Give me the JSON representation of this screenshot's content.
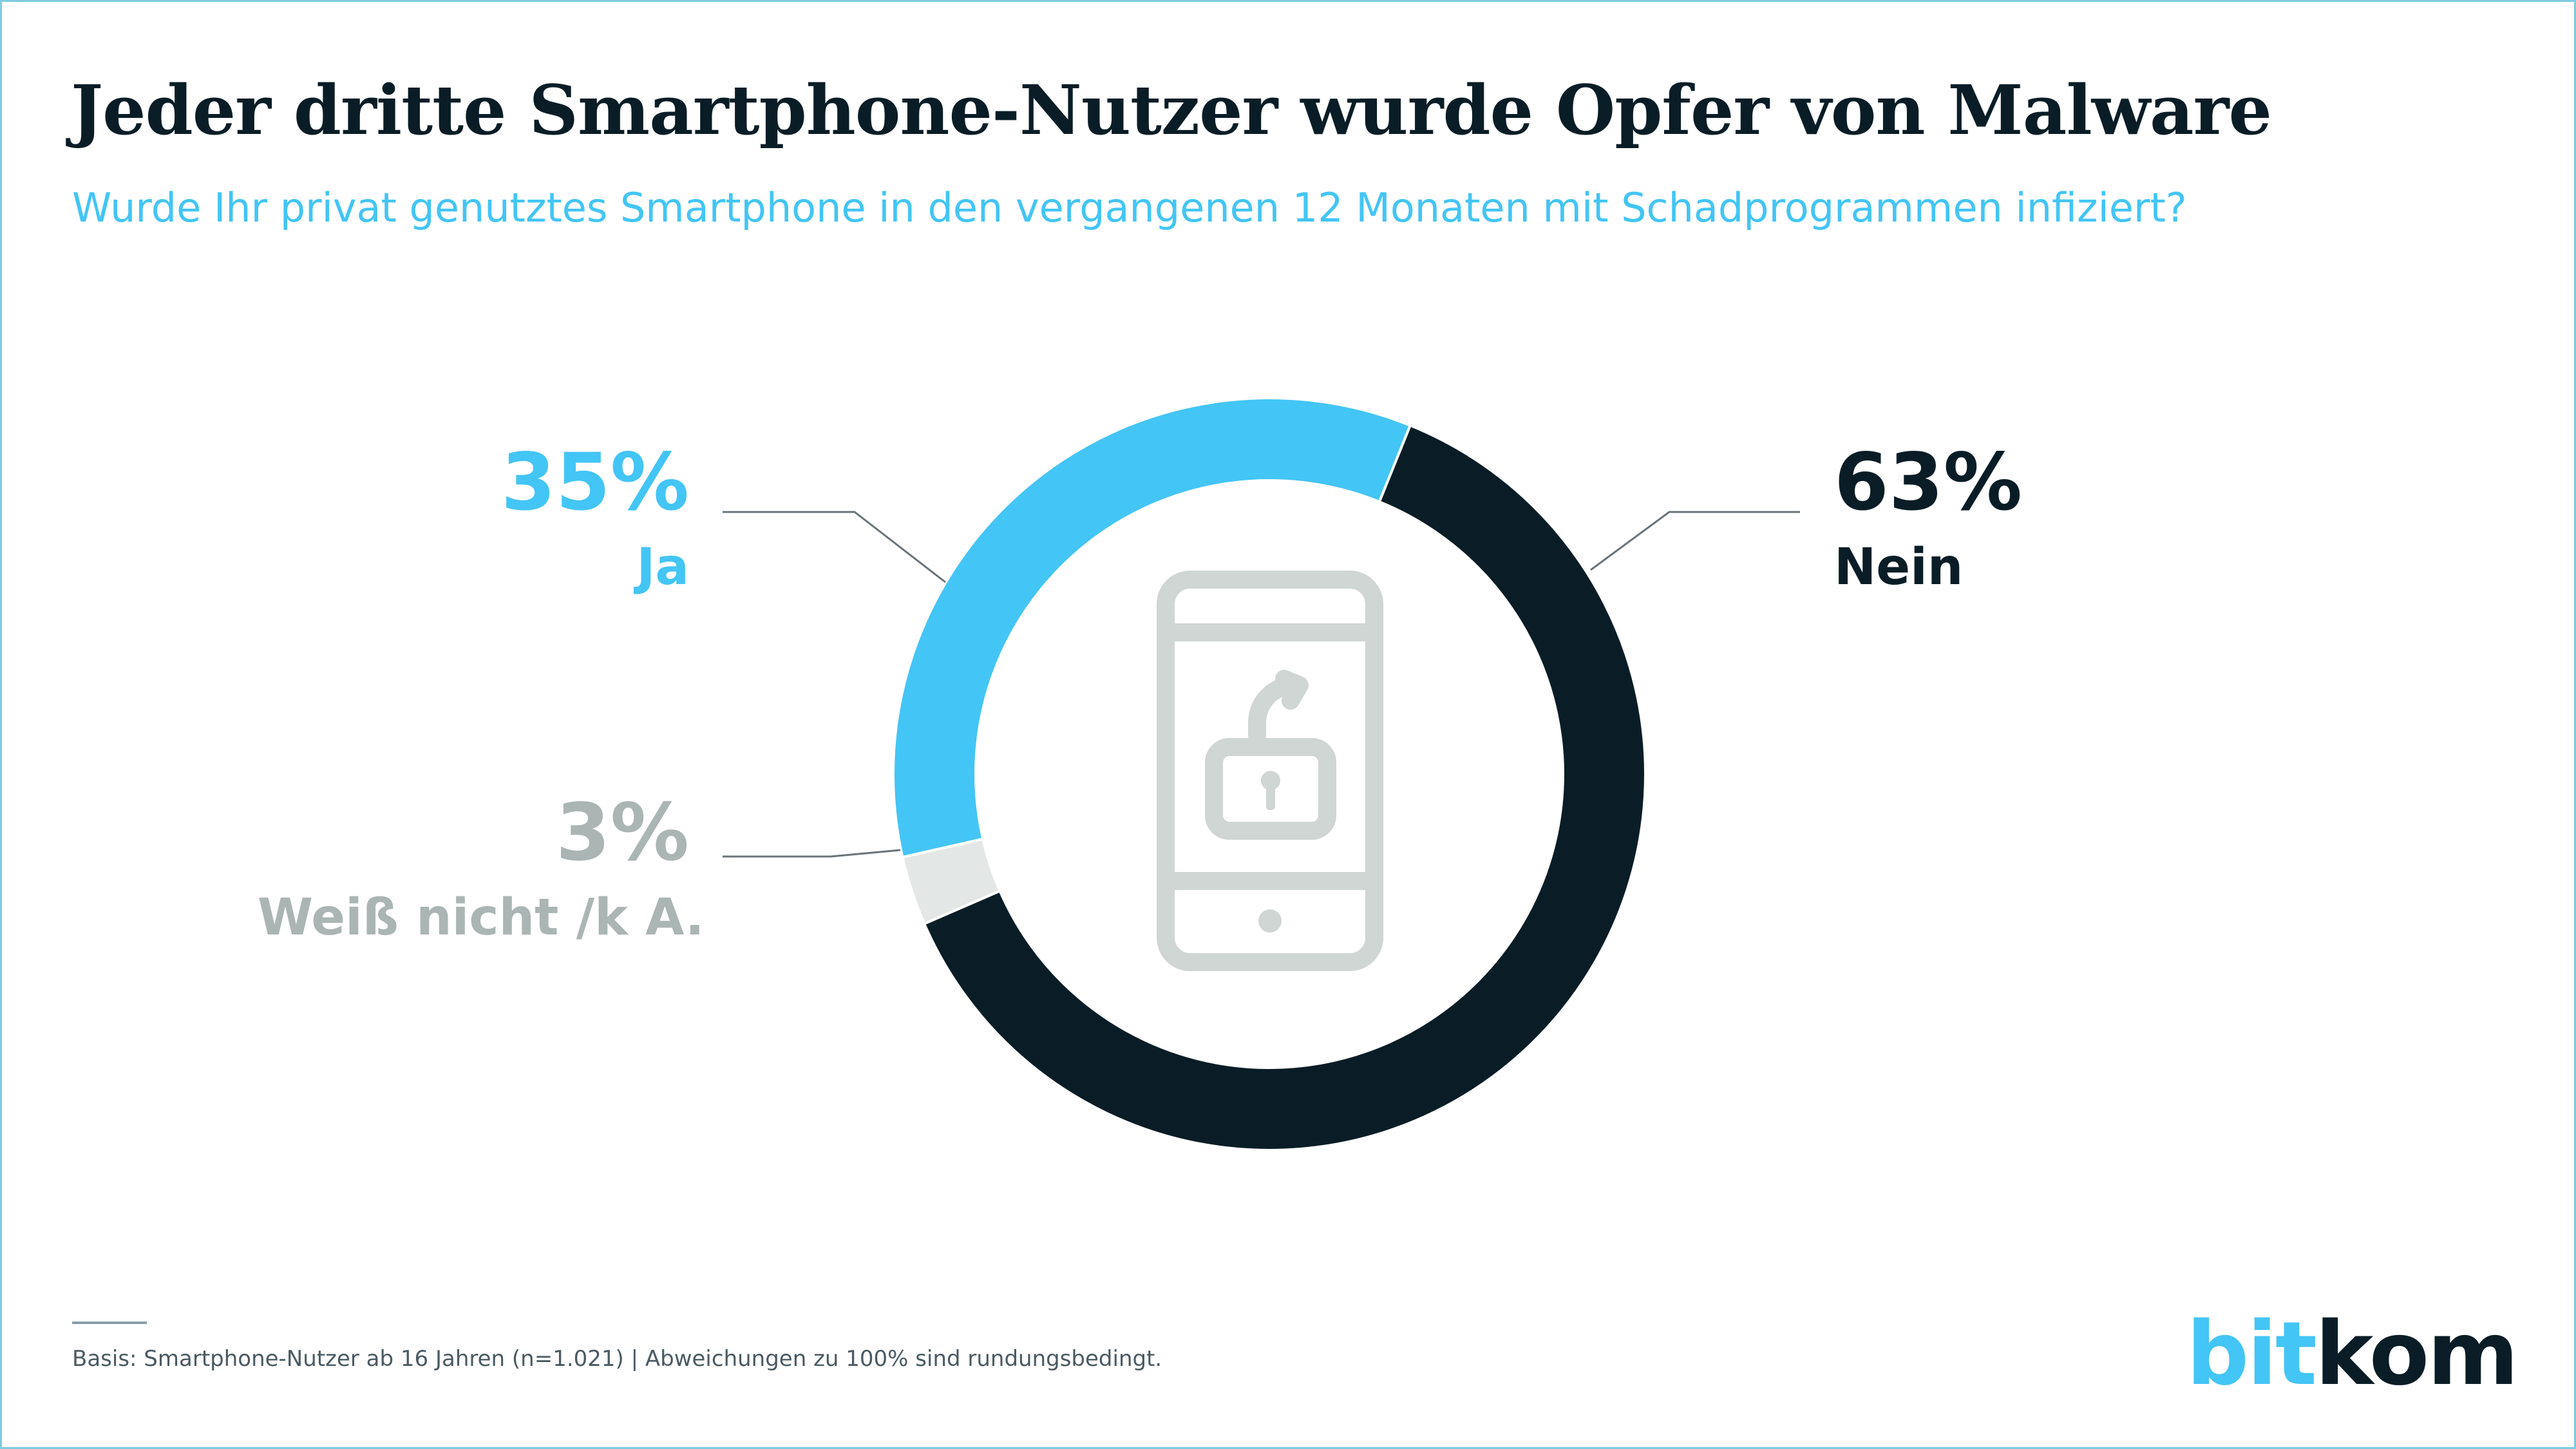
{
  "title": "Jeder dritte Smartphone-Nutzer wurde Opfer von Malware",
  "subtitle": "Wurde Ihr privat genutztes Smartphone in den vergangenen 12 Monaten mit Schadprogrammen infiziert?",
  "labels": {
    "ja": {
      "pct": "35%",
      "cat": "Ja"
    },
    "nein": {
      "pct": "63%",
      "cat": "Nein"
    },
    "wn": {
      "pct": "3%",
      "cat": "Weiß nicht /k A."
    }
  },
  "footnote": "Basis: Smartphone-Nutzer ab 16 Jahren (n=1.021) | Abweichungen zu 100% sind rundungsbedingt.",
  "logo": {
    "part1": "bit",
    "part2": "kom"
  },
  "colors": {
    "ja": "#43c5f5",
    "nein": "#0a1d26",
    "wn": "#e3e8e6",
    "icon": "#cfd6d3",
    "accent": "#43c5f5"
  },
  "chart_data": {
    "type": "pie",
    "categories": [
      "Nein",
      "Weiß nicht /k A.",
      "Ja"
    ],
    "values": [
      63,
      3,
      35
    ],
    "unit": "%",
    "center_icon": "smartphone-unlocked-icon"
  }
}
